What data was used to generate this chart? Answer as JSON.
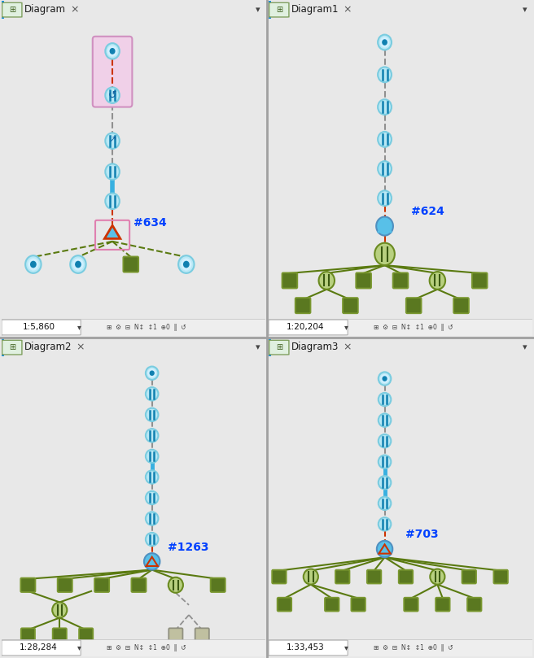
{
  "fig_w": 6.56,
  "fig_h": 8.09,
  "dpi": 100,
  "bg": "#e8e8e8",
  "panel_bg": "#ffffff",
  "divider_color": "#a0a0a0",
  "tab_bg": "#d4d4d4",
  "tab_active_bg": "#ffffff",
  "tab_text_color": "#1a1a1a",
  "tab_blue_bar": "#1a8fdb",
  "statusbar_bg": "#f0f0f0",
  "statusbar_border": "#c0c0c0",
  "node_cyan_fill": "#b8e8f5",
  "node_cyan_edge": "#7acce0",
  "node_cyan_dark": "#1080b0",
  "node_green_fill": "#5a7820",
  "node_green_edge": "#7a9830",
  "node_green_light": "#c0d890",
  "node_green_stripe": "#3a5810",
  "blue_line": "#38b0e0",
  "red_dashed": "#cc3300",
  "gray_dashed": "#909090",
  "olive_line": "#5a7a10",
  "olive_dashed": "#5a7a10",
  "label_color": "#0040ff",
  "panels": [
    {
      "id": "D0",
      "title": "Diagram",
      "scale": "1:5,860",
      "col": 0,
      "row": 0
    },
    {
      "id": "D1",
      "title": "Diagram1",
      "scale": "1:20,204",
      "col": 1,
      "row": 0
    },
    {
      "id": "D2",
      "title": "Diagram2",
      "scale": "1:28,284",
      "col": 0,
      "row": 1
    },
    {
      "id": "D3",
      "title": "Diagram3",
      "scale": "1:33,453",
      "col": 1,
      "row": 1
    }
  ]
}
